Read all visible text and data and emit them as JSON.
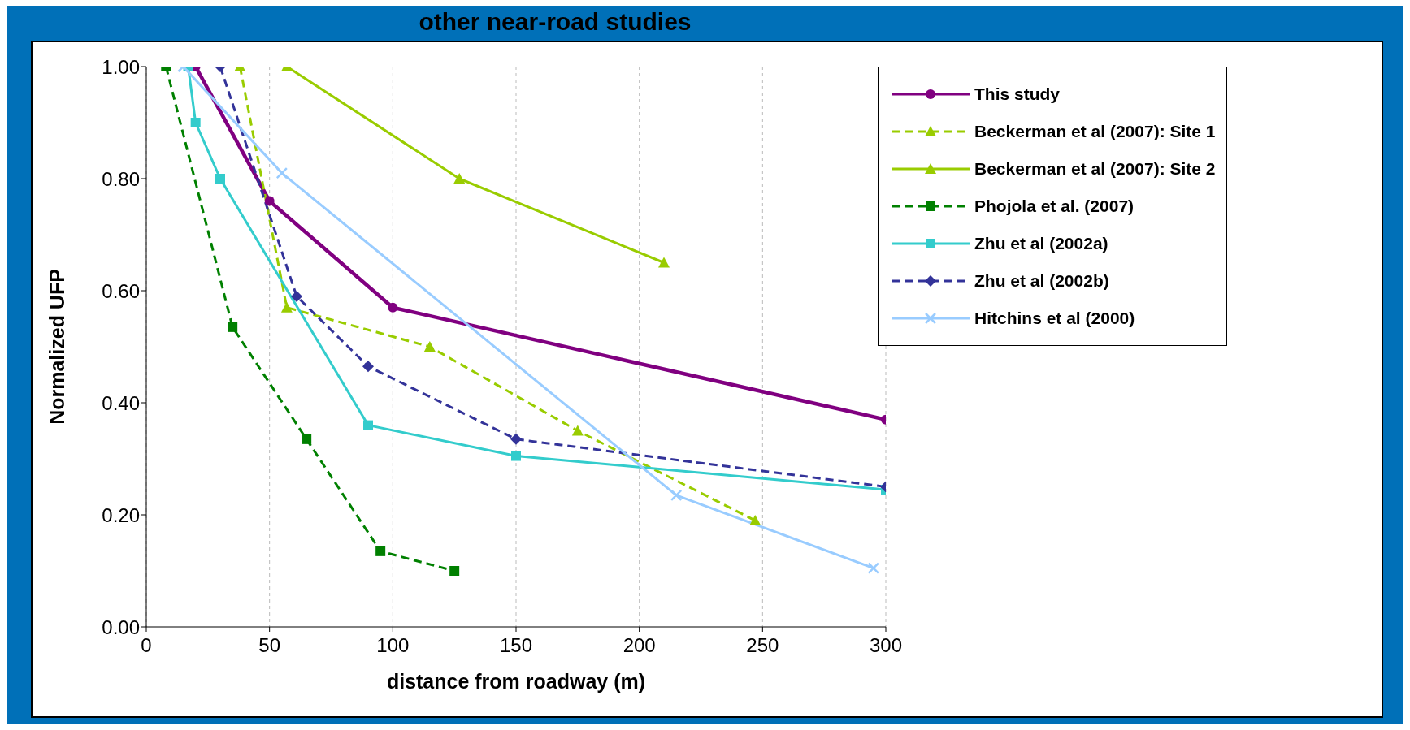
{
  "chart_data": {
    "type": "line",
    "title": "other near-road studies",
    "xlabel": "distance from roadway (m)",
    "ylabel": "Normalized UFP",
    "xlim": [
      0,
      300
    ],
    "xticks": [
      0,
      50,
      100,
      150,
      200,
      250,
      300
    ],
    "ylim": [
      0,
      1
    ],
    "yticks": [
      {
        "value": 0,
        "label": "0.00"
      },
      {
        "value": 0.2,
        "label": "0.20"
      },
      {
        "value": 0.4,
        "label": "0.40"
      },
      {
        "value": 0.6,
        "label": "0.60"
      },
      {
        "value": 0.8,
        "label": "0.80"
      },
      {
        "value": 1,
        "label": "1.00"
      }
    ],
    "grid": "x",
    "legend": "right",
    "series": [
      {
        "name": "This study",
        "color": "#800080",
        "marker": "circle",
        "line_style": "solid",
        "x": [
          20,
          50,
          100,
          300
        ],
        "values": [
          1.0,
          0.76,
          0.57,
          0.37
        ]
      },
      {
        "name": "Beckerman et al (2007): Site 1",
        "color": "#99cc00",
        "marker": "triangle",
        "line_style": "dashed",
        "x": [
          38,
          57,
          115,
          175,
          247
        ],
        "values": [
          1.0,
          0.57,
          0.5,
          0.35,
          0.19
        ]
      },
      {
        "name": "Beckerman et al (2007): Site 2",
        "color": "#99cc00",
        "marker": "triangle",
        "line_style": "solid",
        "x": [
          57,
          127,
          210
        ],
        "values": [
          1.0,
          0.8,
          0.65
        ]
      },
      {
        "name": "Phojola et al. (2007)",
        "color": "#008000",
        "marker": "square",
        "line_style": "dashed",
        "x": [
          8,
          35,
          65,
          95,
          125
        ],
        "values": [
          1.0,
          0.535,
          0.335,
          0.135,
          0.1
        ]
      },
      {
        "name": "Zhu et al (2002a)",
        "color": "#33cccc",
        "marker": "square",
        "line_style": "solid",
        "x": [
          17,
          20,
          30,
          90,
          150,
          300
        ],
        "values": [
          1.0,
          0.9,
          0.8,
          0.36,
          0.305,
          0.245
        ]
      },
      {
        "name": "Zhu et al (2002b)",
        "color": "#333399",
        "marker": "diamond",
        "line_style": "dashed",
        "x": [
          30,
          61,
          90,
          150,
          300
        ],
        "values": [
          1.0,
          0.59,
          0.465,
          0.335,
          0.25
        ]
      },
      {
        "name": "Hitchins et al (2000)",
        "color": "#99ccff",
        "marker": "cross",
        "line_style": "solid",
        "x": [
          15,
          55,
          215,
          295
        ],
        "values": [
          1.0,
          0.81,
          0.235,
          0.105
        ]
      }
    ]
  }
}
